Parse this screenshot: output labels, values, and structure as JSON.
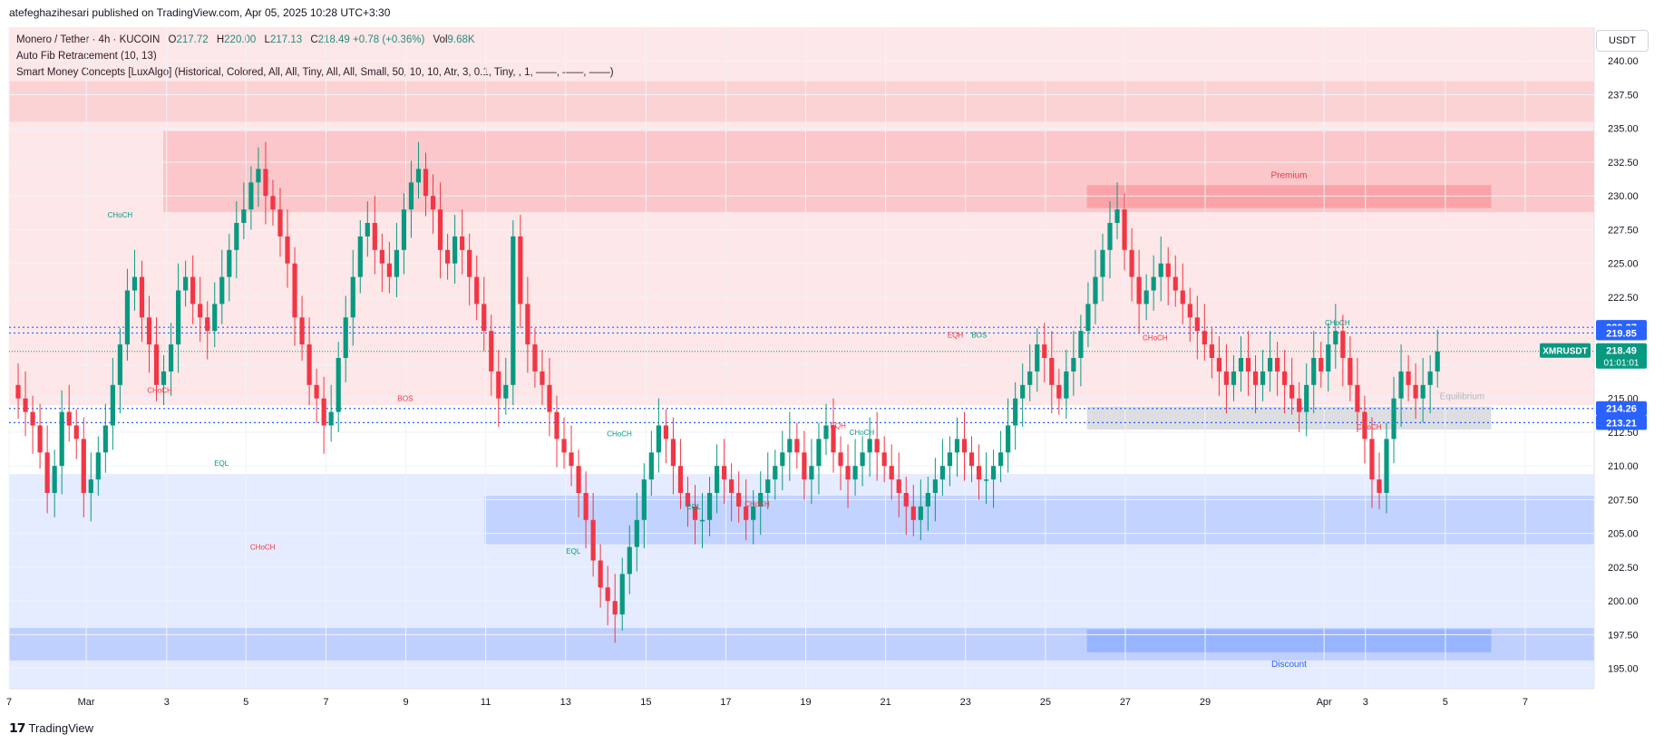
{
  "header": {
    "attribution": "atefeghazihesari published on TradingView.com, Apr 05, 2025 10:28 UTC+3:30"
  },
  "legend": {
    "symbol": "Monero / Tether · 4h · KUCOIN",
    "open_label": "O",
    "open": "217.72",
    "high_label": "H",
    "high": "220.00",
    "low_label": "L",
    "low": "217.13",
    "close_label": "C",
    "close": "218.49",
    "change": "+0.78 (+0.36%)",
    "vol_label": "Vol",
    "vol": "9.68K",
    "indicator1": "Auto Fib Retracement (10, 13)",
    "indicator2": "Smart Money Concepts [LuxAlgo] (Historical, Colored, All, All, Tiny, All, All, Small, 50, 10, 10, Atr, 3, 0.1, Tiny, , 1, ——, ——, ——)"
  },
  "currency": "USDT",
  "footer": {
    "brand": "TradingView"
  },
  "colors": {
    "up": "#089981",
    "down": "#f23645",
    "premium": "#f23645",
    "discount": "#2962ff",
    "fib": "#2962ff"
  },
  "chart_data": {
    "type": "candlestick",
    "ylim": [
      193.5,
      242.5
    ],
    "yticks": [
      "195.00",
      "197.50",
      "200.00",
      "202.50",
      "205.00",
      "207.50",
      "210.00",
      "212.50",
      "215.00",
      "217.50",
      "220.00",
      "222.50",
      "225.00",
      "227.50",
      "230.00",
      "232.50",
      "235.00",
      "237.50",
      "240.00"
    ],
    "xticks": [
      {
        "label": "7",
        "t": 0
      },
      {
        "label": "Mar",
        "t": 0.0487
      },
      {
        "label": "3",
        "t": 0.0994
      },
      {
        "label": "5",
        "t": 0.1494
      },
      {
        "label": "7",
        "t": 0.1999
      },
      {
        "label": "9",
        "t": 0.2503
      },
      {
        "label": "11",
        "t": 0.3007
      },
      {
        "label": "13",
        "t": 0.3511
      },
      {
        "label": "15",
        "t": 0.4018
      },
      {
        "label": "17",
        "t": 0.4522
      },
      {
        "label": "19",
        "t": 0.5026
      },
      {
        "label": "21",
        "t": 0.553
      },
      {
        "label": "23",
        "t": 0.6034
      },
      {
        "label": "25",
        "t": 0.6538
      },
      {
        "label": "27",
        "t": 0.7042
      },
      {
        "label": "29",
        "t": 0.7546
      },
      {
        "label": "Apr",
        "t": 0.8296
      },
      {
        "label": "3",
        "t": 0.8557
      },
      {
        "label": "5",
        "t": 0.9061
      },
      {
        "label": "7",
        "t": 0.9565
      }
    ],
    "close_series": [
      216,
      215,
      214,
      213,
      211,
      208,
      210,
      214,
      213,
      212,
      208,
      209,
      211,
      213,
      216,
      219,
      223,
      224,
      221,
      219,
      216,
      217,
      219,
      223,
      224,
      222,
      221,
      220,
      222,
      224,
      226,
      228,
      229,
      231,
      232,
      230,
      229,
      227,
      225,
      221,
      219,
      216,
      215,
      213,
      214,
      218,
      221,
      224,
      227,
      228,
      226,
      225,
      224,
      226,
      229,
      231,
      232,
      230,
      229,
      226,
      225,
      227,
      226,
      224,
      222,
      220,
      217,
      215,
      216,
      227,
      222,
      219,
      217,
      216,
      214,
      212,
      211,
      210,
      208,
      206,
      203,
      201,
      200,
      199,
      202,
      204,
      206,
      209,
      211,
      213,
      212,
      210,
      208,
      207,
      206,
      206,
      208,
      210,
      209,
      208,
      207,
      206,
      207,
      208,
      209,
      210,
      211,
      212,
      211,
      209,
      210,
      212,
      213,
      211,
      210,
      209,
      210,
      211,
      212,
      211,
      210,
      209,
      208,
      207,
      206,
      207,
      208,
      209,
      210,
      211,
      212,
      211,
      210,
      209,
      209,
      210,
      211,
      213,
      215,
      216,
      217,
      219,
      218,
      216,
      215,
      217,
      218,
      220,
      222,
      224,
      226,
      228,
      229,
      226,
      224,
      222,
      223,
      224,
      225,
      224,
      223,
      222,
      221,
      220,
      219,
      218,
      217,
      216,
      217,
      218,
      217,
      216,
      217,
      218,
      217,
      216,
      215,
      214,
      216,
      218,
      217,
      219,
      220,
      218,
      216,
      214,
      212,
      209,
      208,
      212,
      215,
      217,
      216,
      215,
      216,
      217,
      218.49
    ],
    "zones": [
      {
        "label": "Premium",
        "top": 230.8,
        "bottom": 229.1
      },
      {
        "label": "Equilibrium",
        "top": 214.4,
        "bottom": 212.7
      },
      {
        "label": "Discount",
        "top": 197.9,
        "bottom": 196.2
      }
    ],
    "structure_labels": [
      {
        "text": "CHoCH",
        "x": 0.07,
        "y": 228.4,
        "color": "up"
      },
      {
        "text": "CHoCH",
        "x": 0.095,
        "y": 215.4,
        "color": "down"
      },
      {
        "text": "EQL",
        "x": 0.134,
        "y": 210.0,
        "color": "up"
      },
      {
        "text": "CHoCH",
        "x": 0.16,
        "y": 203.8,
        "color": "down"
      },
      {
        "text": "BOS",
        "x": 0.25,
        "y": 214.8,
        "color": "down"
      },
      {
        "text": "EQL",
        "x": 0.356,
        "y": 203.5,
        "color": "up"
      },
      {
        "text": "CHoCH",
        "x": 0.385,
        "y": 212.2,
        "color": "up"
      },
      {
        "text": "EQL",
        "x": 0.432,
        "y": 206.8,
        "color": "up"
      },
      {
        "text": "CHoCH",
        "x": 0.472,
        "y": 207.0,
        "color": "down"
      },
      {
        "text": "EQH",
        "x": 0.523,
        "y": 212.8,
        "color": "down"
      },
      {
        "text": "CHoCH",
        "x": 0.538,
        "y": 212.3,
        "color": "up"
      },
      {
        "text": "EQH",
        "x": 0.597,
        "y": 219.5,
        "color": "down"
      },
      {
        "text": "BOS",
        "x": 0.612,
        "y": 219.5,
        "color": "up"
      },
      {
        "text": "CHoCH",
        "x": 0.723,
        "y": 219.3,
        "color": "down"
      },
      {
        "text": "CHoCH",
        "x": 0.838,
        "y": 220.4,
        "color": "up"
      },
      {
        "text": "CHoCH",
        "x": 0.858,
        "y": 212.7,
        "color": "down"
      }
    ],
    "fib_levels": [
      220.27,
      219.85,
      214.26,
      213.21
    ],
    "price_labels": [
      {
        "text": "220.27",
        "value": 220.27
      },
      {
        "text": "219.85",
        "value": 219.85
      },
      {
        "text": "214.26",
        "value": 214.26
      },
      {
        "text": "213.21",
        "value": 213.21
      }
    ],
    "last_price": {
      "symbol": "XMRUSDT",
      "price": "218.49",
      "countdown": "01:01:01",
      "value": 218.49
    }
  }
}
